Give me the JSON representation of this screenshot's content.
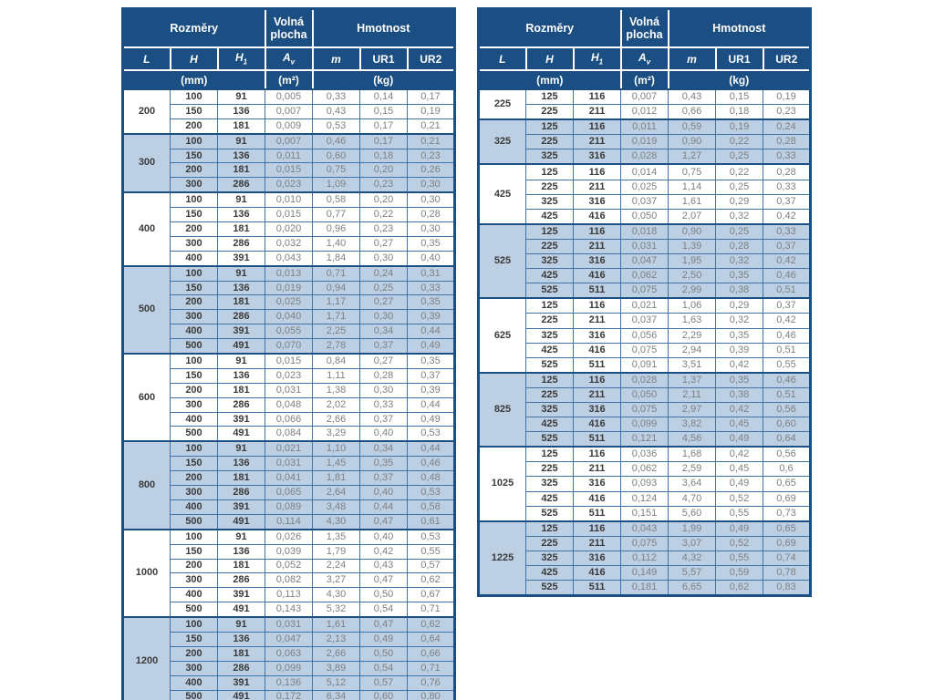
{
  "header": {
    "rozmery": "Rozměry",
    "volna_plocha": "Volná plocha",
    "hmotnost": "Hmotnost",
    "col_L": "L",
    "col_H": "H",
    "col_H1": "H",
    "col_H1_sub": "1",
    "col_Av": "A",
    "col_Av_sub": "v",
    "col_m": "m",
    "col_UR1": "UR1",
    "col_UR2": "UR2",
    "unit_mm": "(mm)",
    "unit_m2": "(m²)",
    "unit_kg": "(kg)"
  },
  "colors": {
    "header_navy": "#1b4e82",
    "shaded_row_blue": "#bccfe3",
    "grid_blue": "#4073a9",
    "value_text_gray": "#7d8084",
    "dim_text_dark": "#3b3b3b"
  },
  "tables": [
    {
      "name": "left",
      "groups": [
        {
          "L": "200",
          "shaded": false,
          "rows": [
            [
              "100",
              "91",
              "0,005",
              "0,33",
              "0,14",
              "0,17"
            ],
            [
              "150",
              "136",
              "0,007",
              "0,43",
              "0,15",
              "0,19"
            ],
            [
              "200",
              "181",
              "0,009",
              "0,53",
              "0,17",
              "0,21"
            ]
          ]
        },
        {
          "L": "300",
          "shaded": true,
          "rows": [
            [
              "100",
              "91",
              "0,007",
              "0,46",
              "0,17",
              "0,21"
            ],
            [
              "150",
              "136",
              "0,011",
              "0,60",
              "0,18",
              "0,23"
            ],
            [
              "200",
              "181",
              "0,015",
              "0,75",
              "0,20",
              "0,26"
            ],
            [
              "300",
              "286",
              "0,023",
              "1,09",
              "0,23",
              "0,30"
            ]
          ]
        },
        {
          "L": "400",
          "shaded": false,
          "rows": [
            [
              "100",
              "91",
              "0,010",
              "0,58",
              "0,20",
              "0,30"
            ],
            [
              "150",
              "136",
              "0,015",
              "0,77",
              "0,22",
              "0,28"
            ],
            [
              "200",
              "181",
              "0,020",
              "0,96",
              "0,23",
              "0,30"
            ],
            [
              "300",
              "286",
              "0,032",
              "1,40",
              "0,27",
              "0,35"
            ],
            [
              "400",
              "391",
              "0,043",
              "1,84",
              "0,30",
              "0,40"
            ]
          ]
        },
        {
          "L": "500",
          "shaded": true,
          "rows": [
            [
              "100",
              "91",
              "0,013",
              "0,71",
              "0,24",
              "0,31"
            ],
            [
              "150",
              "136",
              "0,019",
              "0,94",
              "0,25",
              "0,33"
            ],
            [
              "200",
              "181",
              "0,025",
              "1,17",
              "0,27",
              "0,35"
            ],
            [
              "300",
              "286",
              "0,040",
              "1,71",
              "0,30",
              "0,39"
            ],
            [
              "400",
              "391",
              "0,055",
              "2,25",
              "0,34",
              "0,44"
            ],
            [
              "500",
              "491",
              "0,070",
              "2,78",
              "0,37",
              "0,49"
            ]
          ]
        },
        {
          "L": "600",
          "shaded": false,
          "rows": [
            [
              "100",
              "91",
              "0,015",
              "0,84",
              "0,27",
              "0,35"
            ],
            [
              "150",
              "136",
              "0,023",
              "1,11",
              "0,28",
              "0,37"
            ],
            [
              "200",
              "181",
              "0,031",
              "1,38",
              "0,30",
              "0,39"
            ],
            [
              "300",
              "286",
              "0,048",
              "2,02",
              "0,33",
              "0,44"
            ],
            [
              "400",
              "391",
              "0,066",
              "2,66",
              "0,37",
              "0,49"
            ],
            [
              "500",
              "491",
              "0,084",
              "3,29",
              "0,40",
              "0,53"
            ]
          ]
        },
        {
          "L": "800",
          "shaded": true,
          "rows": [
            [
              "100",
              "91",
              "0,021",
              "1,10",
              "0,34",
              "0,44"
            ],
            [
              "150",
              "136",
              "0,031",
              "1,45",
              "0,35",
              "0,46"
            ],
            [
              "200",
              "181",
              "0,041",
              "1,81",
              "0,37",
              "0,48"
            ],
            [
              "300",
              "286",
              "0,065",
              "2,64",
              "0,40",
              "0,53"
            ],
            [
              "400",
              "391",
              "0,089",
              "3,48",
              "0,44",
              "0,58"
            ],
            [
              "500",
              "491",
              "0,114",
              "4,30",
              "0,47",
              "0,61"
            ]
          ]
        },
        {
          "L": "1000",
          "shaded": false,
          "rows": [
            [
              "100",
              "91",
              "0,026",
              "1,35",
              "0,40",
              "0,53"
            ],
            [
              "150",
              "136",
              "0,039",
              "1,79",
              "0,42",
              "0,55"
            ],
            [
              "200",
              "181",
              "0,052",
              "2,24",
              "0,43",
              "0,57"
            ],
            [
              "300",
              "286",
              "0,082",
              "3,27",
              "0,47",
              "0,62"
            ],
            [
              "400",
              "391",
              "0,113",
              "4,30",
              "0,50",
              "0,67"
            ],
            [
              "500",
              "491",
              "0,143",
              "5,32",
              "0,54",
              "0,71"
            ]
          ]
        },
        {
          "L": "1200",
          "shaded": true,
          "rows": [
            [
              "100",
              "91",
              "0,031",
              "1,61",
              "0,47",
              "0,62"
            ],
            [
              "150",
              "136",
              "0,047",
              "2,13",
              "0,49",
              "0,64"
            ],
            [
              "200",
              "181",
              "0,063",
              "2,66",
              "0,50",
              "0,66"
            ],
            [
              "300",
              "286",
              "0,099",
              "3,89",
              "0,54",
              "0,71"
            ],
            [
              "400",
              "391",
              "0,136",
              "5,12",
              "0,57",
              "0,76"
            ],
            [
              "500",
              "491",
              "0,172",
              "6,34",
              "0,60",
              "0,80"
            ]
          ]
        }
      ]
    },
    {
      "name": "right",
      "groups": [
        {
          "L": "225",
          "shaded": false,
          "rows": [
            [
              "125",
              "116",
              "0,007",
              "0,43",
              "0,15",
              "0,19"
            ],
            [
              "225",
              "211",
              "0,012",
              "0,66",
              "0,18",
              "0,23"
            ]
          ]
        },
        {
          "L": "325",
          "shaded": true,
          "rows": [
            [
              "125",
              "116",
              "0,011",
              "0,59",
              "0,19",
              "0,24"
            ],
            [
              "225",
              "211",
              "0,019",
              "0,90",
              "0,22",
              "0,28"
            ],
            [
              "325",
              "316",
              "0,028",
              "1,27",
              "0,25",
              "0,33"
            ]
          ]
        },
        {
          "L": "425",
          "shaded": false,
          "rows": [
            [
              "125",
              "116",
              "0,014",
              "0,75",
              "0,22",
              "0,28"
            ],
            [
              "225",
              "211",
              "0,025",
              "1,14",
              "0,25",
              "0,33"
            ],
            [
              "325",
              "316",
              "0,037",
              "1,61",
              "0,29",
              "0,37"
            ],
            [
              "425",
              "416",
              "0,050",
              "2,07",
              "0,32",
              "0,42"
            ]
          ]
        },
        {
          "L": "525",
          "shaded": true,
          "rows": [
            [
              "125",
              "116",
              "0,018",
              "0,90",
              "0,25",
              "0,33"
            ],
            [
              "225",
              "211",
              "0,031",
              "1,39",
              "0,28",
              "0,37"
            ],
            [
              "325",
              "316",
              "0,047",
              "1,95",
              "0,32",
              "0,42"
            ],
            [
              "425",
              "416",
              "0,062",
              "2,50",
              "0,35",
              "0,46"
            ],
            [
              "525",
              "511",
              "0,075",
              "2,99",
              "0,38",
              "0,51"
            ]
          ]
        },
        {
          "L": "625",
          "shaded": false,
          "rows": [
            [
              "125",
              "116",
              "0,021",
              "1,06",
              "0,29",
              "0,37"
            ],
            [
              "225",
              "211",
              "0,037",
              "1,63",
              "0,32",
              "0,42"
            ],
            [
              "325",
              "316",
              "0,056",
              "2,29",
              "0,35",
              "0,46"
            ],
            [
              "425",
              "416",
              "0,075",
              "2,94",
              "0,39",
              "0,51"
            ],
            [
              "525",
              "511",
              "0,091",
              "3,51",
              "0,42",
              "0,55"
            ]
          ]
        },
        {
          "L": "825",
          "shaded": true,
          "rows": [
            [
              "125",
              "116",
              "0,028",
              "1,37",
              "0,35",
              "0,46"
            ],
            [
              "225",
              "211",
              "0,050",
              "2,11",
              "0,38",
              "0,51"
            ],
            [
              "325",
              "316",
              "0,075",
              "2,97",
              "0,42",
              "0,56"
            ],
            [
              "425",
              "416",
              "0,099",
              "3,82",
              "0,45",
              "0,60"
            ],
            [
              "525",
              "511",
              "0,121",
              "4,56",
              "0,49",
              "0,64"
            ]
          ]
        },
        {
          "L": "1025",
          "shaded": false,
          "rows": [
            [
              "125",
              "116",
              "0,036",
              "1,68",
              "0,42",
              "0,56"
            ],
            [
              "225",
              "211",
              "0,062",
              "2,59",
              "0,45",
              "0,6"
            ],
            [
              "325",
              "316",
              "0,093",
              "3,64",
              "0,49",
              "0,65"
            ],
            [
              "425",
              "416",
              "0,124",
              "4,70",
              "0,52",
              "0,69"
            ],
            [
              "525",
              "511",
              "0,151",
              "5,60",
              "0,55",
              "0,73"
            ]
          ]
        },
        {
          "L": "1225",
          "shaded": true,
          "rows": [
            [
              "125",
              "116",
              "0,043",
              "1,99",
              "0,49",
              "0,65"
            ],
            [
              "225",
              "211",
              "0,075",
              "3,07",
              "0,52",
              "0,69"
            ],
            [
              "325",
              "316",
              "0,112",
              "4,32",
              "0,55",
              "0,74"
            ],
            [
              "425",
              "416",
              "0,149",
              "5,57",
              "0,59",
              "0,78"
            ],
            [
              "525",
              "511",
              "0,181",
              "6,65",
              "0,62",
              "0,83"
            ]
          ]
        }
      ]
    }
  ]
}
